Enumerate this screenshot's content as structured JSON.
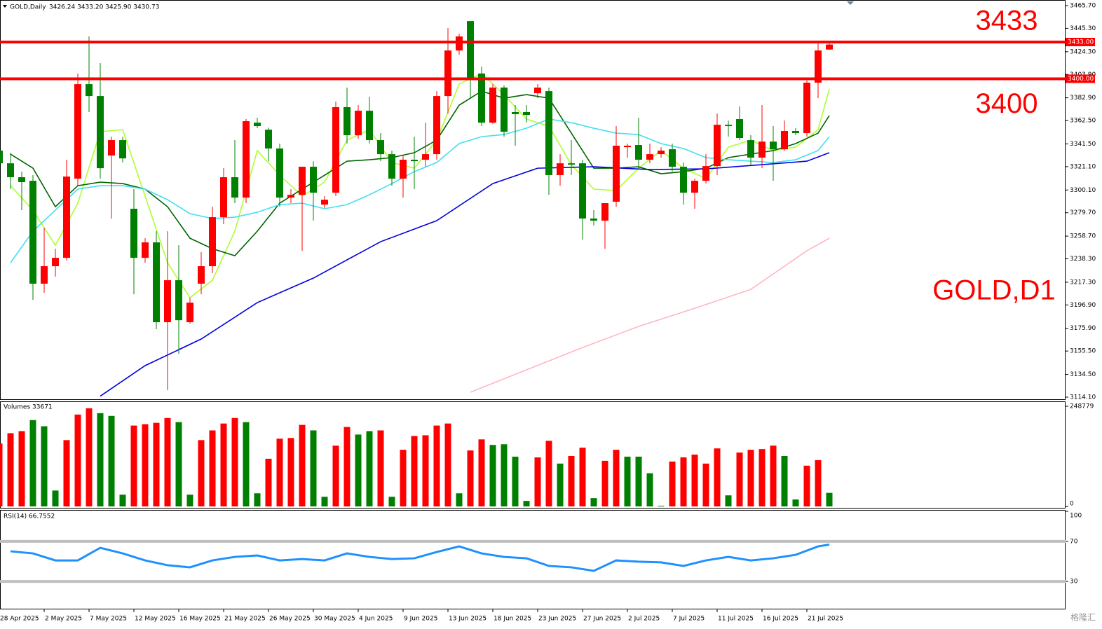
{
  "chart_data": [
    {
      "type": "candlestick",
      "title": "GOLD,Daily",
      "quote": "3426.24 3433.20 3425.90 3430.73",
      "categories": [
        "28 Apr 2025",
        null,
        null,
        null,
        "2 May 2025",
        null,
        null,
        null,
        "7 May 2025",
        null,
        null,
        null,
        "12 May 2025",
        null,
        null,
        null,
        "16 May 2025",
        null,
        null,
        null,
        "21 May 2025",
        null,
        null,
        null,
        "26 May 2025",
        null,
        null,
        null,
        "30 May 2025",
        null,
        null,
        null,
        "4 Jun 2025",
        null,
        null,
        null,
        "9 Jun 2025",
        null,
        null,
        null,
        "13 Jun 2025",
        null,
        null,
        null,
        "18 Jun 2025",
        null,
        null,
        null,
        "23 Jun 2025",
        null,
        null,
        null,
        "27 Jun 2025",
        null,
        null,
        null,
        "2 Jul 2025",
        null,
        null,
        null,
        "7 Jul 2025",
        null,
        null,
        null,
        "11 Jul 2025",
        null,
        null,
        null,
        "16 Jul 2025",
        null,
        null,
        null,
        "21 Jul 2025",
        null,
        null
      ],
      "open": [
        3335.5,
        3324.1,
        3311.6,
        3308.4,
        3216.0,
        3231.7,
        3239.2,
        3310.3,
        3395.2,
        3384.5,
        3331.1,
        3344.9,
        3283.3,
        3239.2,
        3253.1,
        3181.4,
        3219.1,
        3181.4,
        3216.0,
        3231.7,
        3275.7,
        3311.6,
        3293.3,
        3360.6,
        3354.3,
        3337.4,
        3293.3,
        3295.8,
        3321.0,
        3287.0,
        3297.7,
        3374.5,
        3349.3,
        3371.3,
        3344.9,
        3332.3,
        3310.3,
        3327.3,
        3327.3,
        3332.3,
        3384.5,
        3425.4,
        3451.8,
        3404.7,
        3360.6,
        3392.1,
        3370.1,
        3370.1,
        3387.0,
        3388.9,
        3313.5,
        3324.1,
        3324.1,
        3274.5,
        3272.6,
        3289.6,
        3338.6,
        3340.5,
        3327.3,
        3332.3,
        3336.7,
        3321.0,
        3297.7,
        3308.4,
        3321.6,
        3358.7,
        3363.8,
        3344.9,
        3329.2,
        3343.6,
        3336.7,
        3353.1,
        3351.2,
        3396.5,
        3426.24
      ],
      "high": [
        3338.6,
        3333.6,
        3316.6,
        3313.5,
        3266.3,
        3247.4,
        3327.3,
        3404.7,
        3438.0,
        3414.1,
        3348.0,
        3348.0,
        3300.9,
        3256.8,
        3263.1,
        3263.1,
        3250.5,
        3203.4,
        3244.3,
        3285.1,
        3319.7,
        3344.9,
        3363.8,
        3365.0,
        3356.2,
        3341.8,
        3300.9,
        3321.0,
        3326.0,
        3294.6,
        3379.5,
        3392.1,
        3376.4,
        3383.9,
        3351.2,
        3335.5,
        3331.1,
        3348.0,
        3360.6,
        3388.9,
        3445.5,
        3440.5,
        3451.8,
        3411.0,
        3395.2,
        3394.0,
        3376.4,
        3376.4,
        3395.2,
        3392.1,
        3332.3,
        3344.9,
        3327.3,
        3282.0,
        3288.3,
        3357.5,
        3341.8,
        3365.0,
        3341.8,
        3338.6,
        3341.8,
        3324.8,
        3310.3,
        3332.3,
        3368.8,
        3362.5,
        3375.1,
        3349.3,
        3376.4,
        3357.5,
        3362.5,
        3355.6,
        3398.4,
        3431.7,
        3433.2
      ],
      "low": [
        3268.2,
        3300.9,
        3282.0,
        3201.5,
        3207.8,
        3222.3,
        3236.7,
        3304.0,
        3370.1,
        3310.3,
        3274.5,
        3324.8,
        3206.5,
        3234.8,
        3175.1,
        3120.3,
        3153.1,
        3180.1,
        3206.5,
        3225.4,
        3269.4,
        3288.3,
        3288.3,
        3355.6,
        3326.0,
        3285.1,
        3288.3,
        3245.5,
        3272.6,
        3283.9,
        3294.6,
        3341.8,
        3346.2,
        3341.8,
        3326.0,
        3304.0,
        3293.3,
        3300.9,
        3321.0,
        3327.3,
        3368.8,
        3421.6,
        3382.6,
        3357.5,
        3359.4,
        3348.0,
        3339.9,
        3360.6,
        3382.6,
        3295.8,
        3304.0,
        3313.5,
        3255.6,
        3268.2,
        3247.4,
        3285.1,
        3329.2,
        3319.7,
        3324.1,
        3329.2,
        3316.6,
        3287.0,
        3283.3,
        3305.9,
        3313.5,
        3348.0,
        3344.9,
        3322.9,
        3319.7,
        3308.4,
        3335.5,
        3349.3,
        3348.0,
        3382.6,
        3425.9
      ],
      "close": [
        3324.1,
        3311.6,
        3307.2,
        3216.0,
        3231.7,
        3239.2,
        3312.2,
        3395.2,
        3384.5,
        3319.7,
        3344.9,
        3328.5,
        3239.2,
        3253.1,
        3181.4,
        3219.1,
        3183.2,
        3199.0,
        3231.7,
        3275.7,
        3311.6,
        3293.3,
        3361.9,
        3357.5,
        3337.4,
        3293.3,
        3295.8,
        3321.0,
        3297.7,
        3291.4,
        3374.5,
        3349.3,
        3371.3,
        3344.9,
        3332.3,
        3310.3,
        3327.3,
        3326.0,
        3332.3,
        3384.5,
        3425.4,
        3438.0,
        3400.3,
        3360.6,
        3392.1,
        3352.4,
        3368.2,
        3367.5,
        3392.1,
        3313.5,
        3324.1,
        3322.9,
        3274.5,
        3272.6,
        3288.3,
        3339.9,
        3339.9,
        3327.3,
        3332.3,
        3335.5,
        3321.0,
        3297.7,
        3308.4,
        3321.6,
        3358.7,
        3357.5,
        3346.8,
        3329.2,
        3343.6,
        3336.7,
        3353.1,
        3351.2,
        3396.5,
        3425.4,
        3430.73
      ],
      "up_color": "#ff0000",
      "down_color": "#008000",
      "ylim": [
        3114.1,
        3465.7
      ],
      "yticks": [
        {
          "value": 3465.7,
          "label": "3465.70"
        },
        {
          "value": 3445.3,
          "label": "3445.30"
        },
        {
          "value": 3424.3,
          "label": "3424.30"
        },
        {
          "value": 3403.9,
          "label": "3403.90"
        },
        {
          "value": 3382.9,
          "label": "3382.90"
        },
        {
          "value": 3362.5,
          "label": "3362.50"
        },
        {
          "value": 3341.5,
          "label": "3341.50"
        },
        {
          "value": 3321.1,
          "label": "3321.10"
        },
        {
          "value": 3300.1,
          "label": "3300.10"
        },
        {
          "value": 3279.7,
          "label": "3279.70"
        },
        {
          "value": 3258.7,
          "label": "3258.70"
        },
        {
          "value": 3238.3,
          "label": "3238.30"
        },
        {
          "value": 3217.3,
          "label": "3217.30"
        },
        {
          "value": 3196.9,
          "label": "3196.90"
        },
        {
          "value": 3175.9,
          "label": "3175.90"
        },
        {
          "value": 3155.5,
          "label": "3155.50"
        },
        {
          "value": 3134.5,
          "label": "3134.50"
        },
        {
          "value": 3114.1,
          "label": "3114.10"
        }
      ],
      "overlays": [
        {
          "color": "#adff2f",
          "x": [
            1,
            3,
            5,
            7,
            9,
            11,
            13,
            15,
            17,
            19,
            21,
            23,
            25,
            27,
            29,
            31,
            33,
            35,
            37,
            39,
            41,
            43,
            45,
            47,
            49,
            51,
            53,
            55,
            57,
            59,
            61,
            63,
            65,
            67,
            69,
            71,
            73,
            74
          ],
          "values": [
            3304.0,
            3282.0,
            3250.5,
            3288.3,
            3352.4,
            3354.3,
            3294.6,
            3234.8,
            3203.4,
            3219.1,
            3263.1,
            3335.5,
            3313.4,
            3294.6,
            3307.2,
            3344.9,
            3354.3,
            3324.8,
            3319.7,
            3344.9,
            3395.2,
            3404.7,
            3385.8,
            3363.8,
            3357.5,
            3322.9,
            3300.9,
            3299.6,
            3319.7,
            3335.5,
            3319.7,
            3310.3,
            3338.6,
            3344.9,
            3335.5,
            3338.6,
            3354.3,
            3390.8
          ]
        },
        {
          "color": "#006400",
          "x": [
            1,
            3,
            5,
            7,
            9,
            11,
            13,
            15,
            17,
            19,
            21,
            23,
            25,
            27,
            29,
            31,
            33,
            35,
            37,
            39,
            41,
            43,
            45,
            47,
            49,
            51,
            53,
            55,
            57,
            59,
            61,
            63,
            65,
            67,
            69,
            71,
            73,
            74
          ],
          "values": [
            3332.3,
            3319.7,
            3285.1,
            3304.0,
            3307.2,
            3305.9,
            3300.9,
            3285.1,
            3256.8,
            3247.4,
            3241.1,
            3263.1,
            3288.3,
            3300.9,
            3313.4,
            3326.0,
            3327.3,
            3329.2,
            3333.6,
            3344.9,
            3376.3,
            3388.9,
            3382.6,
            3385.8,
            3382.6,
            3351.2,
            3319.7,
            3319.7,
            3321.0,
            3314.7,
            3316.6,
            3319.7,
            3329.2,
            3332.3,
            3335.5,
            3341.8,
            3351.2,
            3366.9
          ]
        },
        {
          "color": "#40e0f0",
          "x": [
            1,
            3,
            5,
            7,
            9,
            11,
            13,
            15,
            17,
            19,
            21,
            23,
            25,
            27,
            29,
            31,
            33,
            35,
            37,
            39,
            41,
            43,
            45,
            47,
            49,
            51,
            53,
            55,
            57,
            59,
            61,
            63,
            65,
            67,
            69,
            71,
            73,
            74
          ],
          "values": [
            3234.8,
            3263.1,
            3282.0,
            3300.9,
            3304.0,
            3304.0,
            3300.9,
            3291.4,
            3278.9,
            3274.5,
            3275.7,
            3280.1,
            3287.0,
            3288.3,
            3283.3,
            3287.0,
            3295.8,
            3305.9,
            3316.6,
            3324.8,
            3341.8,
            3348.0,
            3349.9,
            3355.6,
            3363.8,
            3360.6,
            3355.6,
            3351.2,
            3349.9,
            3341.8,
            3337.4,
            3329.2,
            3327.3,
            3326.0,
            3324.8,
            3327.3,
            3335.5,
            3348.0
          ]
        },
        {
          "color": "#0000e0",
          "x": [
            9,
            13,
            18,
            23,
            28,
            34,
            39,
            44,
            48,
            53,
            58,
            63,
            68,
            72,
            74
          ],
          "values": [
            3115.0,
            3142.4,
            3166.3,
            3199.0,
            3221.0,
            3253.7,
            3272.6,
            3305.9,
            3319.7,
            3321.0,
            3318.5,
            3319.1,
            3322.9,
            3326.0,
            3333.6
          ]
        },
        {
          "color": "#ffb6c1",
          "x": [
            42,
            47,
            52,
            57,
            62,
            67,
            72,
            74
          ],
          "values": [
            3118.5,
            3138.6,
            3158.7,
            3177.6,
            3193.9,
            3210.9,
            3245.5,
            3256.8
          ]
        }
      ],
      "levels": [
        {
          "value": 3433,
          "label": "3433.00",
          "note": "3433",
          "color": "#ff0000"
        },
        {
          "value": 3400,
          "label": "3400.00",
          "note": "3400",
          "color": "#ff0000"
        }
      ],
      "annotation": "GOLD,D1"
    },
    {
      "type": "bar",
      "title": "Volumes 33671",
      "values": [
        156200,
        181900,
        187000,
        214500,
        199100,
        39500,
        164700,
        228200,
        243700,
        231700,
        224800,
        29200,
        200800,
        204200,
        207600,
        219600,
        209400,
        29200,
        164700,
        188800,
        205900,
        219600,
        209400,
        32600,
        118400,
        168200,
        169900,
        202500,
        188800,
        24000,
        151000,
        197300,
        178500,
        187000,
        188800,
        24000,
        140700,
        175000,
        176700,
        200800,
        205900,
        32600,
        139000,
        166500,
        152700,
        154400,
        123600,
        13700,
        121800,
        163000,
        106400,
        125300,
        145900,
        20600,
        113300,
        140700,
        123600,
        123600,
        82400,
        1700,
        111500,
        121800,
        128700,
        106400,
        144100,
        27500,
        133800,
        140700,
        142400,
        151000,
        125300,
        17200,
        101200,
        115000,
        33671
      ],
      "colors": [
        "#ff0000",
        "#ff0000",
        "#ff0000",
        "#008000",
        "#008000",
        "#008000",
        "#ff0000",
        "#ff0000",
        "#ff0000",
        "#008000",
        "#008000",
        "#008000",
        "#ff0000",
        "#ff0000",
        "#ff0000",
        "#ff0000",
        "#008000",
        "#008000",
        "#ff0000",
        "#ff0000",
        "#ff0000",
        "#ff0000",
        "#008000",
        "#008000",
        "#ff0000",
        "#ff0000",
        "#ff0000",
        "#ff0000",
        "#008000",
        "#008000",
        "#ff0000",
        "#ff0000",
        "#008000",
        "#008000",
        "#ff0000",
        "#008000",
        "#ff0000",
        "#ff0000",
        "#ff0000",
        "#ff0000",
        "#ff0000",
        "#008000",
        "#ff0000",
        "#ff0000",
        "#008000",
        "#008000",
        "#008000",
        "#008000",
        "#ff0000",
        "#ff0000",
        "#008000",
        "#ff0000",
        "#ff0000",
        "#008000",
        "#ff0000",
        "#ff0000",
        "#008000",
        "#008000",
        "#008000",
        "#008000",
        "#ff0000",
        "#ff0000",
        "#ff0000",
        "#ff0000",
        "#ff0000",
        "#008000",
        "#ff0000",
        "#ff0000",
        "#ff0000",
        "#ff0000",
        "#008000",
        "#008000",
        "#ff0000",
        "#ff0000",
        "#008000"
      ],
      "ylim": [
        0,
        248779
      ],
      "yticks": [
        0,
        248779
      ]
    },
    {
      "type": "line",
      "title": "RSI(14) 66.7552",
      "color": "#1e90ff",
      "x": [
        1,
        3,
        5,
        7,
        9,
        11,
        13,
        15,
        17,
        19,
        21,
        23,
        25,
        27,
        29,
        31,
        33,
        35,
        37,
        39,
        41,
        43,
        45,
        47,
        49,
        51,
        53,
        55,
        57,
        59,
        61,
        63,
        65,
        67,
        69,
        71,
        73,
        74
      ],
      "values": [
        60.1,
        58.0,
        51.0,
        51.0,
        63.6,
        58.0,
        51.0,
        46.2,
        44.1,
        51.0,
        54.5,
        55.9,
        51.0,
        52.4,
        51.0,
        58.0,
        54.5,
        52.4,
        53.1,
        59.4,
        65.0,
        58.0,
        54.5,
        53.1,
        45.5,
        44.1,
        40.6,
        51.0,
        49.7,
        49.0,
        45.5,
        51.0,
        54.5,
        51.0,
        53.1,
        56.6,
        65.0,
        66.7552
      ],
      "ylim": [
        0,
        100
      ],
      "yticks": [
        100,
        70,
        30
      ]
    }
  ],
  "watermark": "格隆汇"
}
